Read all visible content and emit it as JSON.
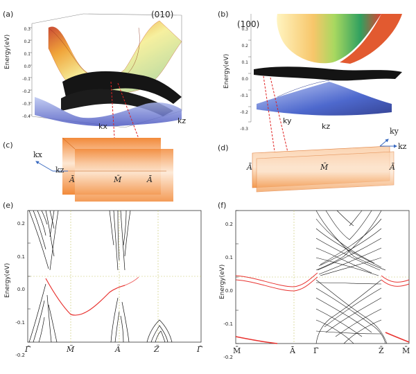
{
  "panel_a": {
    "label": "(a)",
    "plane": "(010)",
    "ylabel": "Energy(eV)",
    "ticks": [
      "0.3",
      "0.2",
      "0.1",
      "0.0",
      "-0.1",
      "-0.2",
      "-0.3",
      "-0.4"
    ],
    "xlabel": "kx",
    "zlabel": "kz"
  },
  "panel_b": {
    "label": "(b)",
    "plane": "(100)",
    "ylabel": "Energy(eV)",
    "ticks": [
      "0.3",
      "0.2",
      "0.1",
      "0.0",
      "-0.1",
      "-0.2",
      "-0.3"
    ],
    "xlabel": "ky",
    "zlabel": "kz"
  },
  "panel_c": {
    "label": "(c)",
    "axis1": "kx",
    "axis2": "kz",
    "points": [
      "Ā",
      "M̄",
      "Ā"
    ]
  },
  "panel_d": {
    "label": "(d)",
    "axis1": "ky",
    "axis2": "kz",
    "points": [
      "Ā",
      "M̄",
      "Ā"
    ]
  },
  "panel_e": {
    "label": "(e)",
    "ylabel": "Energy(eV)",
    "yticks": [
      "0.2",
      "0.1",
      "0.0",
      "-0.1",
      "-0.2"
    ],
    "xticks": [
      "Γ̃",
      "M̃",
      "Ã",
      "Z̃",
      "Γ̃"
    ]
  },
  "panel_f": {
    "label": "(f)",
    "ylabel": "Energy(eV)",
    "yticks": [
      "0.2",
      "0.1",
      "0.0",
      "-0.1",
      "-0.2"
    ],
    "xticks": [
      "M̄",
      "Ā",
      "Γ̄",
      "Z̄",
      "M̄"
    ]
  },
  "colors": {
    "surface_state": "#e8322f",
    "bulk_band": "#111111",
    "guide": "#c8c86a",
    "slab": "#f59a52"
  }
}
